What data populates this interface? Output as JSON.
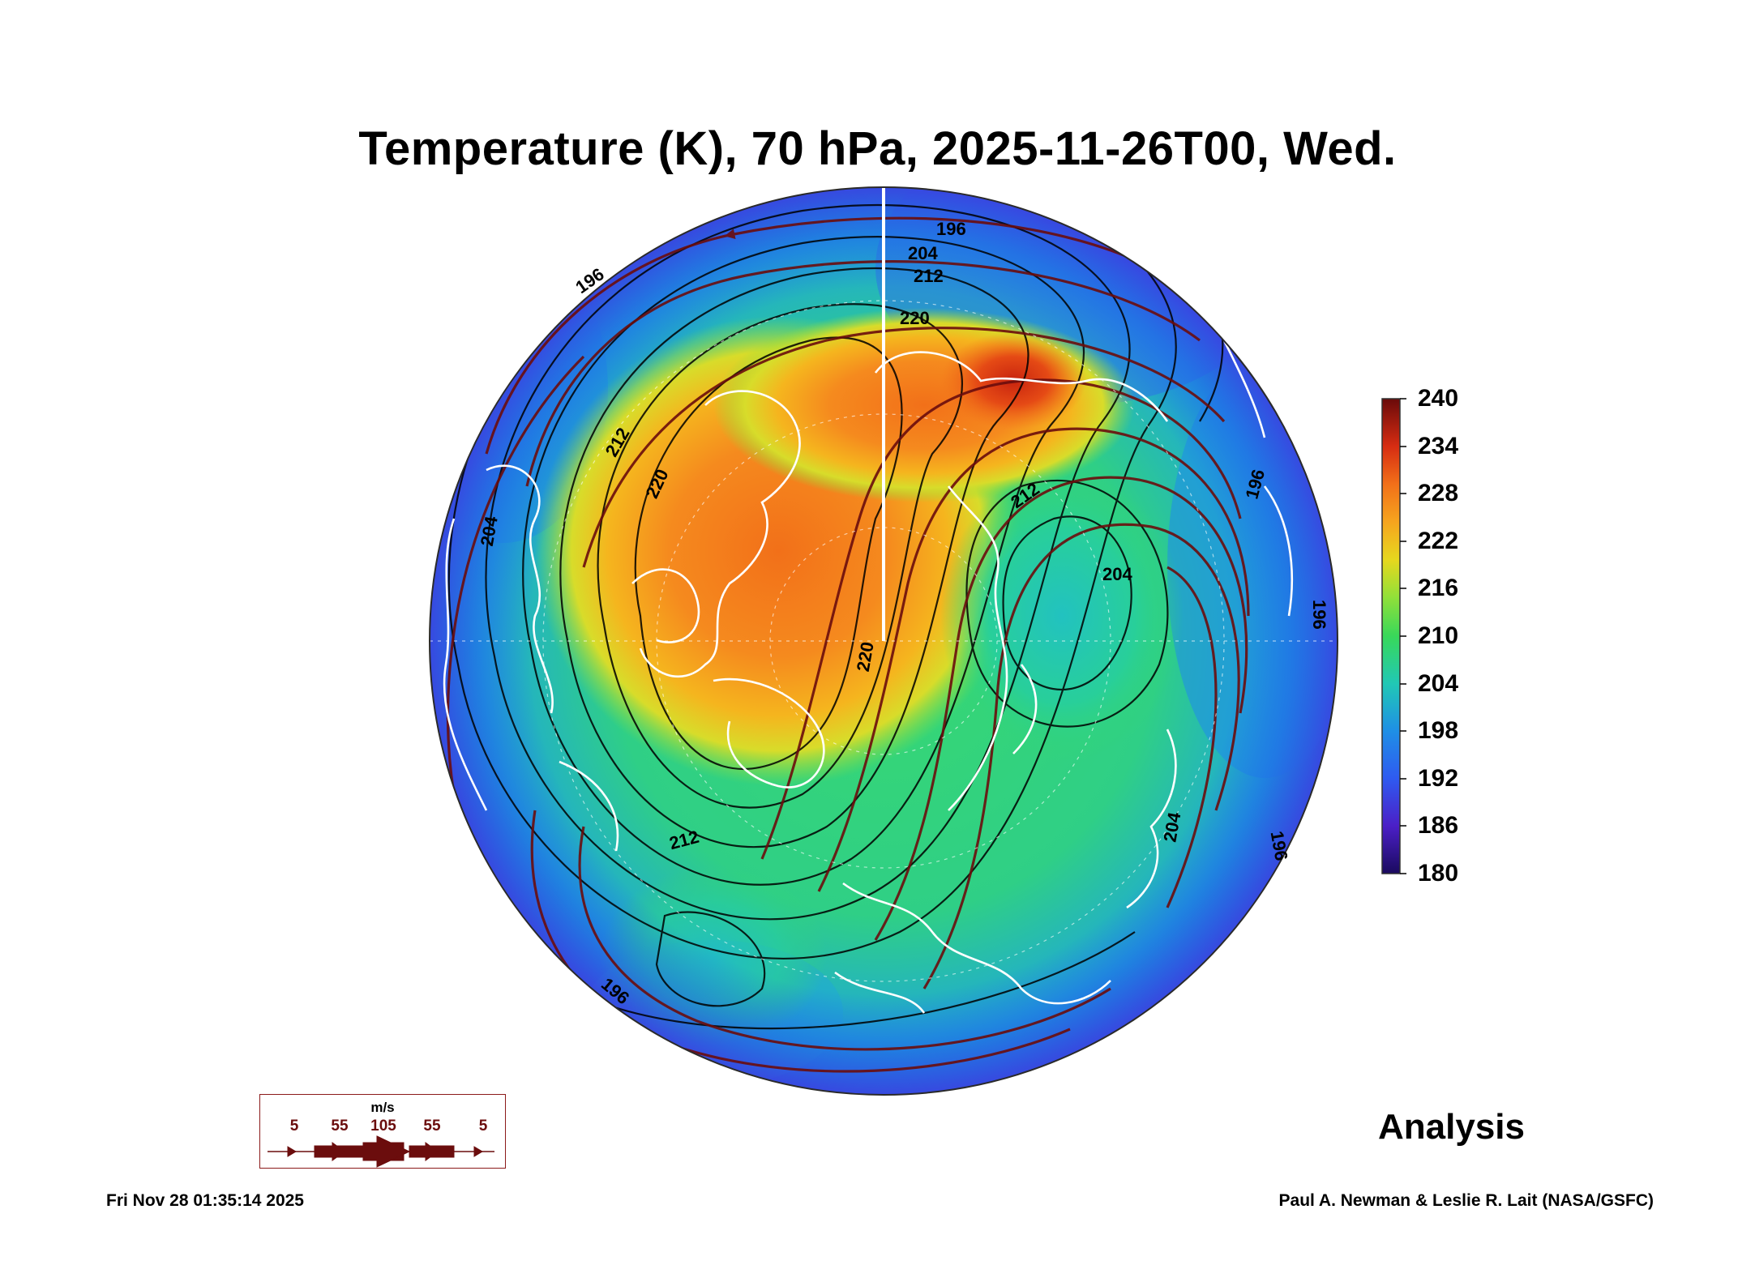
{
  "title": "Temperature (K), 70 hPa, 2025-11-26T00, Wed.",
  "colorbar": {
    "ticks": [
      "240",
      "234",
      "228",
      "222",
      "216",
      "210",
      "204",
      "198",
      "192",
      "186",
      "180"
    ],
    "min": 180,
    "max": 240
  },
  "contour_labels": [
    "196",
    "204",
    "212",
    "220",
    "196",
    "212",
    "220",
    "204",
    "212",
    "204",
    "196",
    "196",
    "196",
    "212",
    "220",
    "204",
    "196"
  ],
  "analysis_label": "Analysis",
  "wind_legend": {
    "unit": "m/s",
    "speeds": [
      "5",
      "55",
      "105",
      "55",
      "5"
    ]
  },
  "footer": {
    "timestamp": "Fri Nov 28 01:35:14 2025",
    "credit": "Paul A. Newman & Leslie R. Lait (NASA/GSFC)"
  },
  "colors": {
    "wind_arrows": "#6b0d0d",
    "coastlines": "#ffffff",
    "contours": "#000000"
  }
}
